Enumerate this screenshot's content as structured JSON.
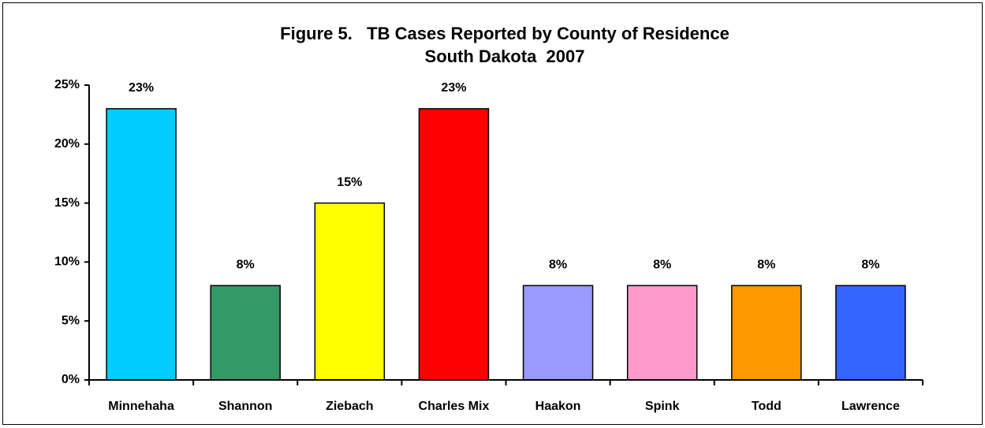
{
  "chart_data": {
    "type": "bar",
    "title": "Figure 5.   TB Cases Reported by County of Residence",
    "subtitle": "South Dakota  2007",
    "categories": [
      "Minnehaha",
      "Shannon",
      "Ziebach",
      "Charles Mix",
      "Haakon",
      "Spink",
      "Todd",
      "Lawrence"
    ],
    "values": [
      23,
      8,
      15,
      23,
      8,
      8,
      8,
      8
    ],
    "value_labels": [
      "23%",
      "8%",
      "15%",
      "23%",
      "8%",
      "8%",
      "8%",
      "8%"
    ],
    "colors": [
      "#00ccff",
      "#339966",
      "#ffff00",
      "#ff0000",
      "#9999ff",
      "#ff99cc",
      "#ff9900",
      "#3366ff"
    ],
    "ylim": [
      0,
      25
    ],
    "yticks": [
      {
        "value": 0,
        "label": "0%"
      },
      {
        "value": 5,
        "label": "5%"
      },
      {
        "value": 10,
        "label": "10%"
      },
      {
        "value": 15,
        "label": "15%"
      },
      {
        "value": 20,
        "label": "20%"
      },
      {
        "value": 25,
        "label": "25%"
      }
    ],
    "grid": false
  }
}
